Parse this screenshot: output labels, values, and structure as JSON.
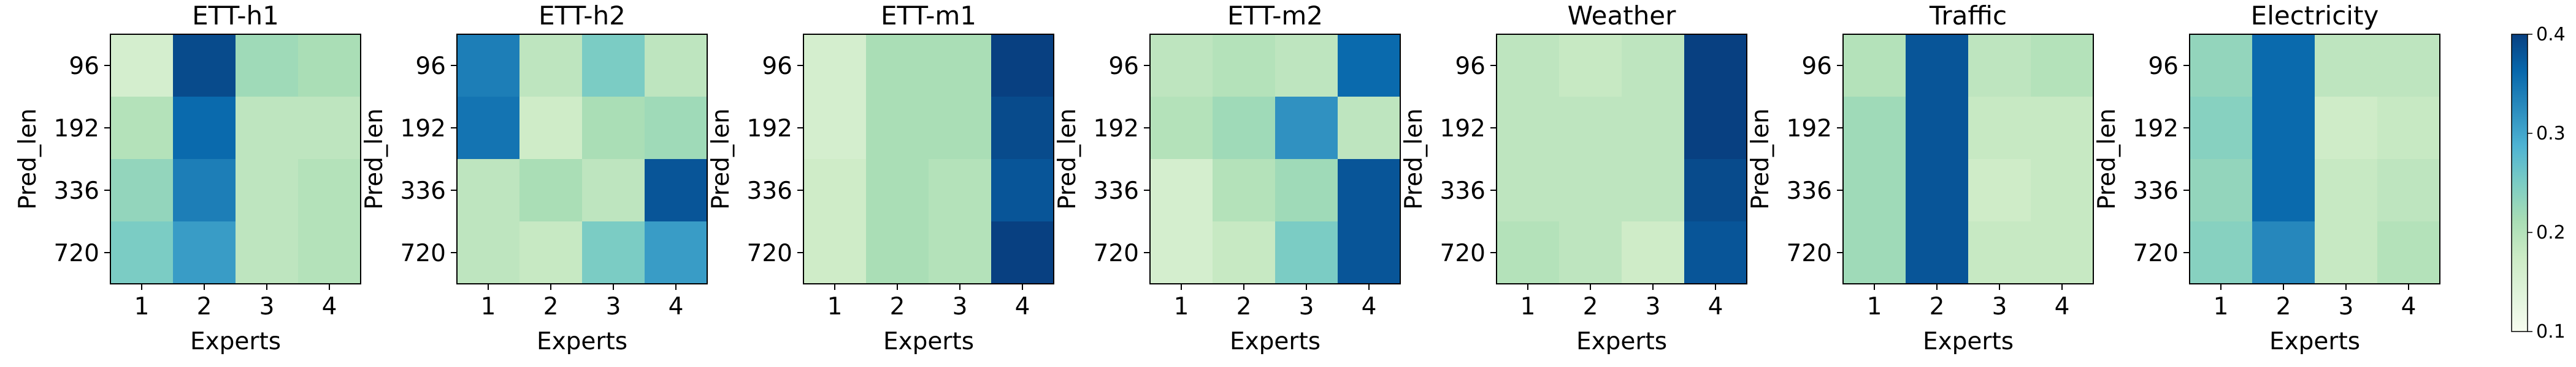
{
  "chart_data": [
    {
      "type": "heatmap",
      "title": "ETT-h1",
      "xlabel": "Experts",
      "ylabel": "Pred_len",
      "x_categories": [
        "1",
        "2",
        "3",
        "4"
      ],
      "y_categories": [
        "96",
        "192",
        "336",
        "720"
      ],
      "values": [
        [
          0.16,
          0.39,
          0.22,
          0.21
        ],
        [
          0.2,
          0.36,
          0.19,
          0.19
        ],
        [
          0.23,
          0.34,
          0.19,
          0.2
        ],
        [
          0.25,
          0.31,
          0.19,
          0.2
        ]
      ]
    },
    {
      "type": "heatmap",
      "title": "ETT-h2",
      "xlabel": "Experts",
      "ylabel": "Pred_len",
      "x_categories": [
        "1",
        "2",
        "3",
        "4"
      ],
      "y_categories": [
        "96",
        "192",
        "336",
        "720"
      ],
      "values": [
        [
          0.34,
          0.19,
          0.25,
          0.19
        ],
        [
          0.35,
          0.17,
          0.21,
          0.22
        ],
        [
          0.19,
          0.21,
          0.19,
          0.38
        ],
        [
          0.19,
          0.18,
          0.25,
          0.31
        ]
      ]
    },
    {
      "type": "heatmap",
      "title": "ETT-m1",
      "xlabel": "Experts",
      "ylabel": "Pred_len",
      "x_categories": [
        "1",
        "2",
        "3",
        "4"
      ],
      "y_categories": [
        "96",
        "192",
        "336",
        "720"
      ],
      "values": [
        [
          0.16,
          0.21,
          0.21,
          0.4
        ],
        [
          0.16,
          0.21,
          0.21,
          0.39
        ],
        [
          0.17,
          0.21,
          0.2,
          0.38
        ],
        [
          0.17,
          0.21,
          0.2,
          0.4
        ]
      ]
    },
    {
      "type": "heatmap",
      "title": "ETT-m2",
      "xlabel": "Experts",
      "ylabel": "Pred_len",
      "x_categories": [
        "1",
        "2",
        "3",
        "4"
      ],
      "y_categories": [
        "96",
        "192",
        "336",
        "720"
      ],
      "values": [
        [
          0.19,
          0.2,
          0.19,
          0.36
        ],
        [
          0.2,
          0.22,
          0.32,
          0.19
        ],
        [
          0.16,
          0.2,
          0.22,
          0.38
        ],
        [
          0.16,
          0.18,
          0.25,
          0.38
        ]
      ]
    },
    {
      "type": "heatmap",
      "title": "Weather",
      "xlabel": "Experts",
      "ylabel": "Pred_len",
      "x_categories": [
        "1",
        "2",
        "3",
        "4"
      ],
      "y_categories": [
        "96",
        "192",
        "336",
        "720"
      ],
      "values": [
        [
          0.19,
          0.18,
          0.19,
          0.41
        ],
        [
          0.19,
          0.19,
          0.19,
          0.41
        ],
        [
          0.19,
          0.19,
          0.19,
          0.39
        ],
        [
          0.2,
          0.19,
          0.17,
          0.38
        ]
      ]
    },
    {
      "type": "heatmap",
      "title": "Traffic",
      "xlabel": "Experts",
      "ylabel": "Pred_len",
      "x_categories": [
        "1",
        "2",
        "3",
        "4"
      ],
      "y_categories": [
        "96",
        "192",
        "336",
        "720"
      ],
      "values": [
        [
          0.2,
          0.38,
          0.19,
          0.2
        ],
        [
          0.22,
          0.38,
          0.18,
          0.18
        ],
        [
          0.22,
          0.38,
          0.17,
          0.18
        ],
        [
          0.22,
          0.38,
          0.18,
          0.18
        ]
      ]
    },
    {
      "type": "heatmap",
      "title": "Electricity",
      "xlabel": "Experts",
      "ylabel": "Pred_len",
      "x_categories": [
        "1",
        "2",
        "3",
        "4"
      ],
      "y_categories": [
        "96",
        "192",
        "336",
        "720"
      ],
      "values": [
        [
          0.23,
          0.36,
          0.19,
          0.19
        ],
        [
          0.24,
          0.36,
          0.17,
          0.18
        ],
        [
          0.23,
          0.36,
          0.18,
          0.19
        ],
        [
          0.24,
          0.33,
          0.18,
          0.2
        ]
      ]
    }
  ],
  "colorbar": {
    "colormap": "GnBu",
    "vmin": 0.1,
    "vmax": 0.4,
    "ticks": [
      0.1,
      0.2,
      0.3,
      0.4
    ],
    "tick_labels": [
      "0.1",
      "0.2",
      "0.3",
      "0.4"
    ],
    "colors": [
      "#f7fcf0",
      "#e0f3db",
      "#ccebc5",
      "#a8ddb5",
      "#7bccc4",
      "#4eb3d3",
      "#2b8cbe",
      "#0868ac",
      "#084081"
    ]
  }
}
